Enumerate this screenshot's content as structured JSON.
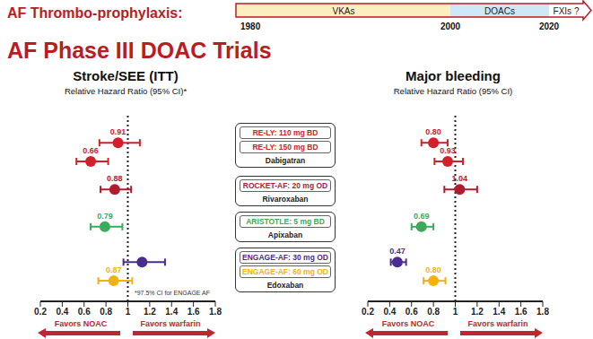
{
  "title": "AF Thrombo-prophylaxis:",
  "timeline": {
    "segments": [
      "VKAs",
      "DOACs",
      "FXIs ?"
    ],
    "ticks": [
      "1980",
      "2000",
      "2020"
    ]
  },
  "heading": "AF Phase III DOAC Trials",
  "trials": [
    {
      "drug": "Dabigatran",
      "arms": [
        {
          "label": "RE-LY: 110 mg BD",
          "color": "#d0202a"
        },
        {
          "label": "RE-LY: 150 mg BD",
          "color": "#d0202a"
        }
      ]
    },
    {
      "drug": "Rivaroxaban",
      "arms": [
        {
          "label": "ROCKET-AF: 20 mg OD",
          "color": "#b01c2e"
        }
      ]
    },
    {
      "drug": "Apixaban",
      "arms": [
        {
          "label": "ARISTOTLE: 5 mg BD",
          "color": "#3aaa5c"
        }
      ]
    },
    {
      "drug": "Edoxaban",
      "arms": [
        {
          "label": "ENGAGE-AF: 30 mg OD",
          "color": "#4b2c91"
        },
        {
          "label": "ENGAGE-AF: 60 mg OD",
          "color": "#f2b10f"
        }
      ]
    }
  ],
  "chart_data": [
    {
      "type": "scatter",
      "title": "Stroke/SEE (ITT)",
      "subtitle": "Relative Hazard Ratio (95% CI)*",
      "note": "*97.5% CI for ENGAGE AF",
      "values": [
        0.91,
        0.66,
        0.88,
        0.79,
        1.13,
        0.87
      ],
      "ci_low": [
        0.74,
        0.53,
        0.75,
        0.66,
        0.96,
        0.73
      ],
      "ci_high": [
        1.11,
        0.82,
        1.03,
        0.95,
        1.34,
        1.04
      ],
      "value_labels": [
        "0.91",
        "0.66",
        "0.88",
        "0.79",
        null,
        "0.87"
      ],
      "colors": [
        "#d0202a",
        "#d0202a",
        "#b01c2e",
        "#3aaa5c",
        "#4b2c91",
        "#f2b10f"
      ],
      "xlim": [
        0.2,
        1.8
      ],
      "xticks": [
        0.2,
        0.4,
        0.6,
        0.8,
        1,
        1.2,
        1.4,
        1.6,
        1.8
      ],
      "reference_x": 1,
      "direction_labels": [
        "Favors NOAC",
        "Favors warfarin"
      ],
      "marker": "circle",
      "data_labels": true,
      "tick_labels": "x"
    },
    {
      "type": "scatter",
      "title": "Major bleeding",
      "subtitle": "Relative Hazard Ratio (95% CI)",
      "values": [
        0.8,
        0.93,
        1.04,
        0.69,
        0.47,
        0.8
      ],
      "ci_low": [
        0.69,
        0.81,
        0.9,
        0.6,
        0.41,
        0.71
      ],
      "ci_high": [
        0.93,
        1.07,
        1.2,
        0.8,
        0.55,
        0.91
      ],
      "value_labels": [
        "0.80",
        "0.93",
        "1.04",
        "0.69",
        "0.47",
        "0.80"
      ],
      "colors": [
        "#d0202a",
        "#d0202a",
        "#b01c2e",
        "#3aaa5c",
        "#4b2c91",
        "#f2b10f"
      ],
      "xlim": [
        0.2,
        1.8
      ],
      "xticks": [
        0.2,
        0.4,
        0.6,
        0.8,
        1,
        1.2,
        1.4,
        1.6,
        1.8
      ],
      "reference_x": 1,
      "direction_labels": [
        "Favors NOAC",
        "Favors warfarin"
      ],
      "marker": "circle",
      "data_labels": true,
      "tick_labels": "x"
    }
  ]
}
